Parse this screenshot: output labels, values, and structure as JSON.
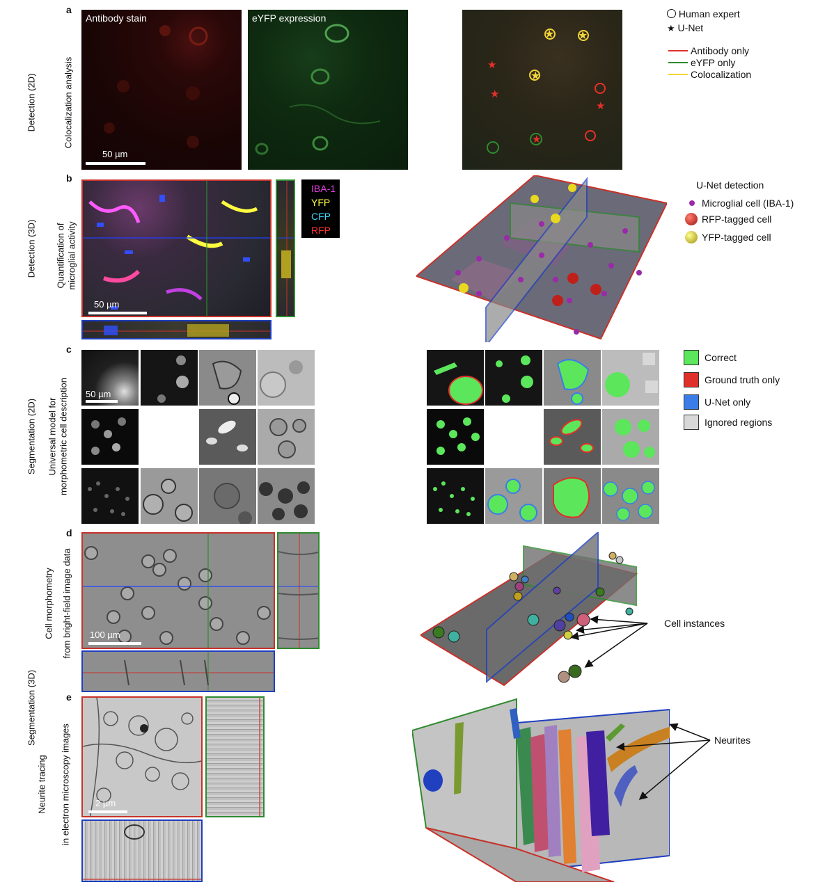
{
  "panels": {
    "a": {
      "letter": "a",
      "side_label": "Detection (2D)",
      "sub_label": "Colocalization analysis",
      "img1_title": "Antibody stain",
      "img2_title": "eYFP expression",
      "scale": "50 µm",
      "legend": {
        "human": "Human expert",
        "unet": "U-Net",
        "antibody_only": "Antibody only",
        "eyfp_only": "eYFP only",
        "coloc": "Colocalization"
      }
    },
    "b": {
      "letter": "b",
      "side_label": "Detection (3D)",
      "sub_label_1": "Quantification of",
      "sub_label_2": "microglial activity",
      "scale": "50 µm",
      "channels": [
        "IBA-1",
        "YFP",
        "CFP",
        "RFP"
      ],
      "channel_colors": [
        "#e040e0",
        "#ffff40",
        "#40d8ff",
        "#ff3030"
      ],
      "legend_title": "U-Net detection",
      "legend": [
        "Microglial cell (IBA-1)",
        "RFP-tagged cell",
        "YFP-tagged cell"
      ]
    },
    "c": {
      "letter": "c",
      "side_label": "Segmentation (2D)",
      "sub_label_1": "Universal model for",
      "sub_label_2": "morphometric cell description",
      "scale": "50 µm",
      "legend": [
        "Correct",
        "Ground truth only",
        "U-Net only",
        "Ignored regions"
      ],
      "legend_colors": [
        "#5ce65c",
        "#e0302a",
        "#3a7de8",
        "#d8d8d8"
      ]
    },
    "d": {
      "letter": "d",
      "side_label": "Segmentation (3D)",
      "sub_label_1": "Cell morphometry",
      "sub_label_2": "from bright-field image data",
      "scale": "100 µm",
      "annotation": "Cell instances"
    },
    "e": {
      "letter": "e",
      "sub_label_1": "Neurite tracing",
      "sub_label_2": "in electron microscopy images",
      "scale": "2 µm",
      "annotation": "Neurites"
    }
  }
}
